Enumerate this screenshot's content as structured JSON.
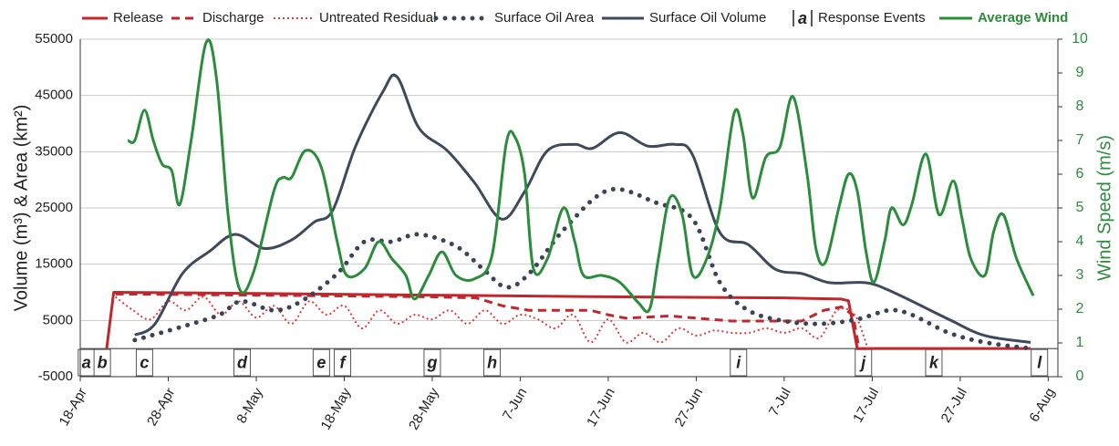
{
  "chart_data": {
    "type": "line",
    "y_label": "Volume (m³) & Area (km²)",
    "y2_label": "Wind Speed (m/s)",
    "xlim": [
      0,
      111.1
    ],
    "xticks": [
      {
        "value": 0,
        "label": "18-Apr"
      },
      {
        "value": 10,
        "label": "28-Apr"
      },
      {
        "value": 20,
        "label": "8-May"
      },
      {
        "value": 30,
        "label": "18-May"
      },
      {
        "value": 40,
        "label": "28-May"
      },
      {
        "value": 50,
        "label": "7-Jun"
      },
      {
        "value": 60,
        "label": "17-Jun"
      },
      {
        "value": 70,
        "label": "27-Jun"
      },
      {
        "value": 80,
        "label": "7-Jul"
      },
      {
        "value": 90,
        "label": "17-Jul"
      },
      {
        "value": 100,
        "label": "27-Jul"
      },
      {
        "value": 110,
        "label": "6-Aug"
      }
    ],
    "ylim": [
      -5000,
      55000
    ],
    "yticks": [
      -5000,
      5000,
      15000,
      25000,
      35000,
      45000,
      55000
    ],
    "y2lim": [
      0,
      10
    ],
    "y2ticks": [
      0,
      1,
      2,
      3,
      4,
      5,
      6,
      7,
      8,
      9,
      10
    ],
    "grid": true,
    "series": [
      {
        "name": "Release",
        "color": "#c0272d",
        "style": "solid",
        "smooth": false,
        "x": [
          3,
          3.8,
          20,
          40,
          60,
          80,
          86.5,
          87.3,
          88.3,
          108
        ],
        "values": [
          0,
          10000,
          9800,
          9500,
          9200,
          9000,
          8800,
          8500,
          0,
          0
        ]
      },
      {
        "name": "Discharge",
        "color": "#c0272d",
        "style": "dashed",
        "smooth": false,
        "x": [
          4,
          20,
          40,
          45,
          48,
          51,
          58,
          60,
          62,
          67,
          74,
          82,
          84.5,
          86.5,
          87.8,
          88.5
        ],
        "values": [
          9700,
          9500,
          9200,
          9000,
          7600,
          6800,
          6800,
          6000,
          5400,
          5800,
          4900,
          4900,
          6800,
          7400,
          6000,
          0
        ]
      },
      {
        "name": "Untreated Residual",
        "color": "#e03a3a",
        "style": "dotted",
        "smooth": true,
        "x": [
          4,
          6,
          8,
          10,
          12,
          14,
          16,
          18,
          20,
          22,
          24,
          26,
          28,
          30,
          32,
          34,
          36,
          38,
          40,
          42,
          44,
          46,
          48,
          50,
          52,
          54,
          56,
          58,
          60,
          62,
          64,
          66,
          68,
          70,
          72,
          74,
          76,
          78,
          80,
          82,
          84,
          86,
          88,
          89.5
        ],
        "values": [
          9200,
          6800,
          5200,
          8400,
          6800,
          9200,
          6000,
          8400,
          5500,
          7600,
          4400,
          8400,
          6000,
          7600,
          3600,
          6800,
          4400,
          6000,
          5200,
          6800,
          4400,
          6800,
          4400,
          6000,
          5200,
          3600,
          6000,
          1100,
          5200,
          1100,
          2800,
          1100,
          3600,
          2300,
          3200,
          2800,
          2800,
          3600,
          2800,
          3600,
          1900,
          6800,
          6000,
          0
        ]
      },
      {
        "name": "Surface Oil Area",
        "color": "#3a4456",
        "style": "dots",
        "smooth": true,
        "x": [
          6.2,
          11.6,
          15.8,
          18.3,
          22,
          25.1,
          29.2,
          32.3,
          35.4,
          38.5,
          42.7,
          45.8,
          48.4,
          51,
          55.1,
          60.1,
          65.5,
          69.6,
          72.7,
          75.9,
          80,
          84.1,
          88.3,
          91.9,
          94.5,
          98.7,
          102.8,
          108
        ],
        "values": [
          1500,
          3900,
          6000,
          8400,
          6800,
          8400,
          13300,
          19000,
          19000,
          20300,
          18200,
          14100,
          10900,
          13300,
          21400,
          28200,
          25900,
          23000,
          11700,
          6800,
          4900,
          4400,
          5200,
          6800,
          6000,
          2800,
          1100,
          0
        ]
      },
      {
        "name": "Surface Oil Volume",
        "color": "#3e4a5c",
        "style": "solid",
        "smooth": true,
        "x": [
          6.2,
          8.5,
          11.6,
          14.7,
          17.6,
          20.9,
          24,
          26.6,
          28.7,
          31.3,
          34.4,
          36,
          38.5,
          41.7,
          44.8,
          47.9,
          50.5,
          53.1,
          56.2,
          58.2,
          61.3,
          64.5,
          67.6,
          69.6,
          72.7,
          75.9,
          79,
          82.1,
          85.2,
          89.3,
          92.4,
          98.7,
          102.8,
          108
        ],
        "values": [
          2400,
          4400,
          13300,
          17300,
          20300,
          17800,
          19300,
          22500,
          24600,
          36000,
          45700,
          48300,
          39200,
          35200,
          29500,
          23000,
          27900,
          35200,
          36300,
          35600,
          38400,
          36000,
          36300,
          34400,
          20600,
          18500,
          14100,
          13300,
          11700,
          11700,
          10000,
          5200,
          2300,
          1100
        ]
      },
      {
        "name": "Average Wind",
        "color": "#2b8c3c",
        "style": "solid",
        "smooth": true,
        "axis": "y2",
        "x": [
          5.4,
          6.2,
          7.3,
          8.3,
          9.3,
          10.4,
          11.3,
          12.6,
          14.3,
          15.5,
          16.8,
          18.1,
          19.7,
          22,
          23,
          24,
          25.6,
          27.4,
          29.2,
          30.3,
          32.3,
          33.9,
          35.4,
          37,
          38,
          39.6,
          41.1,
          42.7,
          44.8,
          46.8,
          48.4,
          49.4,
          50.5,
          51.5,
          53.1,
          54.9,
          56.2,
          57.2,
          59.3,
          61.3,
          63.4,
          64.7,
          65.7,
          67,
          68.4,
          69.6,
          71.2,
          72.7,
          74.3,
          75.3,
          76.4,
          77.9,
          79.5,
          81,
          82.6,
          83.6,
          84.7,
          86.2,
          87.3,
          88.3,
          89.3,
          90.2,
          91.4,
          92.2,
          93.5,
          94.5,
          96.1,
          97.6,
          99.2,
          100.2,
          101.2,
          102.8,
          103.8,
          104.9,
          106.4,
          108.3
        ],
        "values": [
          7.0,
          7.0,
          7.9,
          7.0,
          6.3,
          6.1,
          5.1,
          7.0,
          9.9,
          8.8,
          4.8,
          2.6,
          3.1,
          5.5,
          5.9,
          5.9,
          6.7,
          6.2,
          4.0,
          3.0,
          3.2,
          4.0,
          3.5,
          3.0,
          2.3,
          3.0,
          3.7,
          3.0,
          2.9,
          3.6,
          6.9,
          7.1,
          6.0,
          3.2,
          3.5,
          5.0,
          4.0,
          3.0,
          3.0,
          2.8,
          2.2,
          2.0,
          3.5,
          5.3,
          4.8,
          3.0,
          3.5,
          5.0,
          7.8,
          7.2,
          5.3,
          6.5,
          6.8,
          8.3,
          6.0,
          3.8,
          3.4,
          5.0,
          6.0,
          5.5,
          3.7,
          2.8,
          4.0,
          5.0,
          4.5,
          5.1,
          6.6,
          4.8,
          5.8,
          4.7,
          3.5,
          3.0,
          4.3,
          4.8,
          3.5,
          2.4
        ]
      }
    ],
    "events_legend": {
      "symbol": "a",
      "name": "Response Events"
    },
    "events": [
      {
        "label": "a",
        "x": 0.7
      },
      {
        "label": "b",
        "x": 2.5
      },
      {
        "label": "c",
        "x": 7.3
      },
      {
        "label": "d",
        "x": 18.4
      },
      {
        "label": "e",
        "x": 27.4
      },
      {
        "label": "f",
        "x": 29.8
      },
      {
        "label": "g",
        "x": 40
      },
      {
        "label": "h",
        "x": 46.8
      },
      {
        "label": "i",
        "x": 74.8
      },
      {
        "label": "j",
        "x": 89
      },
      {
        "label": "k",
        "x": 97
      },
      {
        "label": "l",
        "x": 109
      }
    ]
  }
}
